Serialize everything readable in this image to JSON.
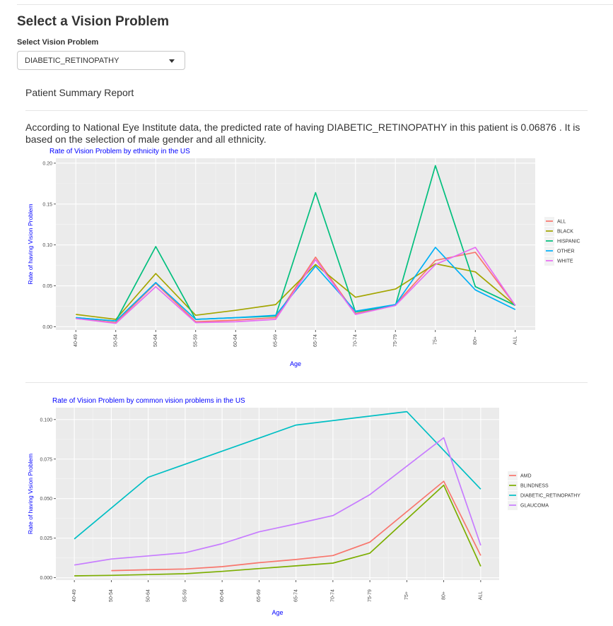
{
  "header": {
    "title": "Select a Vision Problem"
  },
  "selector": {
    "label": "Select Vision Problem",
    "value": "DIABETIC_RETINOPATHY"
  },
  "report": {
    "title": "Patient Summary Report",
    "summary": "According to National Eye Institute data, the predicted rate of having DIABETIC_RETINOPATHY in this patient is 0.06876 . It is based on the selection of male gender and all ethnicity."
  },
  "colors": {
    "panel_bg": "#ebebeb",
    "title_blue": "#0000ff",
    "c1": "#f8766d",
    "c2": "#a3a500",
    "c3": "#00bf7d",
    "c4": "#00b0f6",
    "c5": "#e76bf3",
    "d1": "#f8766d",
    "d2": "#7cae00",
    "d3": "#00bfc4",
    "d4": "#c77cff"
  },
  "chart_data": [
    {
      "type": "line",
      "title": "Rate of Vision Problem by ethnicity in the US",
      "xlabel": "Age",
      "ylabel": "Rate of having Vision Problem",
      "categories": [
        "40-49",
        "50-54",
        "50-64",
        "55-59",
        "60-64",
        "65-69",
        "65-74",
        "70-74",
        "75-79",
        "75+",
        "80+",
        "ALL"
      ],
      "yticks": [
        "0.00",
        "0.05",
        "0.10",
        "0.15",
        "0.20"
      ],
      "ylim": [
        -0.004,
        0.206
      ],
      "grid": true,
      "legend": "right",
      "series": [
        {
          "name": "ALL",
          "color": "#f8766d",
          "values": [
            0.01,
            0.005,
            0.053,
            0.006,
            0.008,
            0.011,
            0.085,
            0.016,
            0.027,
            0.081,
            0.091,
            0.026
          ]
        },
        {
          "name": "BLACK",
          "color": "#a3a500",
          "values": [
            0.015,
            0.009,
            0.065,
            0.014,
            0.02,
            0.027,
            0.076,
            0.036,
            0.046,
            0.077,
            0.067,
            0.026
          ]
        },
        {
          "name": "HISPANIC",
          "color": "#00bf7d",
          "values": [
            0.011,
            0.007,
            0.098,
            0.009,
            0.011,
            0.013,
            0.164,
            0.018,
            0.026,
            0.197,
            0.049,
            0.026
          ]
        },
        {
          "name": "OTHER",
          "color": "#00b0f6",
          "values": [
            0.011,
            0.007,
            0.054,
            0.009,
            0.011,
            0.014,
            0.074,
            0.019,
            0.027,
            0.097,
            0.045,
            0.021
          ]
        },
        {
          "name": "WHITE",
          "color": "#e76bf3",
          "values": [
            0.01,
            0.004,
            0.049,
            0.005,
            0.006,
            0.009,
            0.082,
            0.015,
            0.026,
            0.076,
            0.097,
            0.026
          ]
        }
      ]
    },
    {
      "type": "line",
      "title": "Rate of Vision Problem by common vision problems in the US",
      "xlabel": "Age",
      "ylabel": "Rate of having Vision Problem",
      "categories": [
        "40-49",
        "50-54",
        "50-64",
        "55-59",
        "60-64",
        "65-69",
        "65-74",
        "70-74",
        "75-79",
        "75+",
        "80+",
        "ALL"
      ],
      "yticks": [
        "0.000",
        "0.025",
        "0.050",
        "0.075",
        "0.100"
      ],
      "ylim": [
        -0.0015,
        0.1075
      ],
      "grid": true,
      "legend": "right",
      "series": [
        {
          "name": "AMD",
          "color": "#f8766d",
          "values": [
            null,
            0.0045,
            0.005,
            0.0055,
            0.007,
            0.0095,
            0.0115,
            0.014,
            0.0225,
            null,
            0.061,
            0.014
          ]
        },
        {
          "name": "BLINDNESS",
          "color": "#7cae00",
          "values": [
            0.0012,
            0.0015,
            0.002,
            0.0025,
            0.004,
            0.0058,
            0.0075,
            0.0092,
            0.0155,
            null,
            0.0585,
            0.0072
          ]
        },
        {
          "name": "DIABETIC_RETINOPATHY",
          "color": "#00bfc4",
          "values": [
            0.0245,
            null,
            0.0635,
            null,
            null,
            null,
            0.0965,
            null,
            null,
            0.105,
            null,
            0.056
          ]
        },
        {
          "name": "GLAUCOMA",
          "color": "#c77cff",
          "values": [
            0.008,
            0.0118,
            0.0138,
            0.0158,
            0.0215,
            0.029,
            0.034,
            0.0393,
            0.0525,
            null,
            0.0885,
            0.0205
          ]
        }
      ]
    }
  ]
}
